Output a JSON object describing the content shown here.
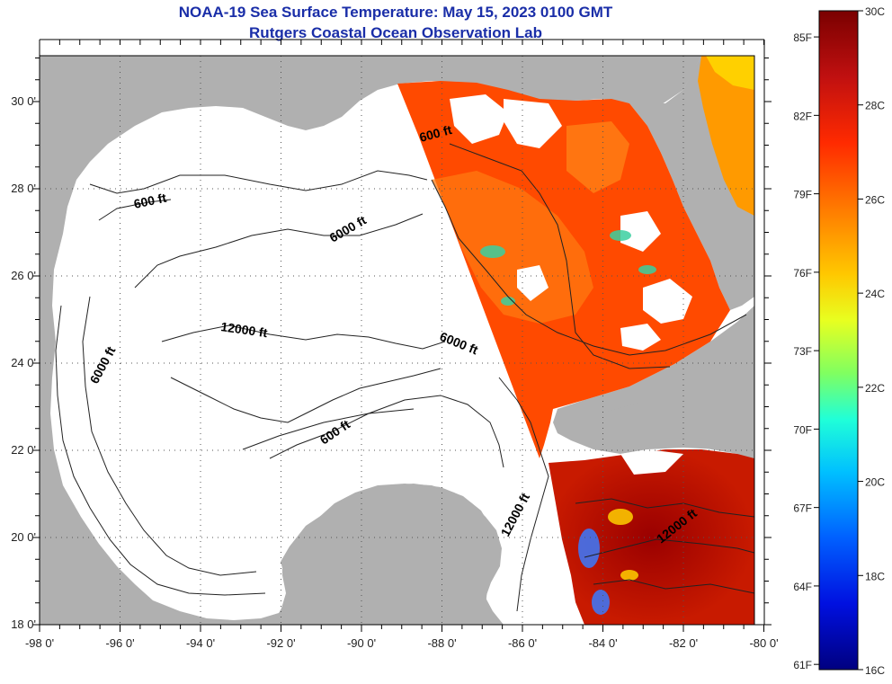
{
  "title": {
    "line1": "NOAA-19 Sea Surface Temperature:  May 15, 2023 0100 GMT",
    "line2": "Rutgers Coastal Ocean Observation Lab"
  },
  "map": {
    "lon_ticks": [
      "-98 0'",
      "-96 0'",
      "-94 0'",
      "-92 0'",
      "-90 0'",
      "-88 0'",
      "-86 0'",
      "-84 0'",
      "-82 0'",
      "-80 0'"
    ],
    "lat_ticks": [
      "30 0'",
      "28 0'",
      "26 0'",
      "24 0'",
      "22 0'",
      "20 0'",
      "18 0'"
    ],
    "lon_range": [
      -98,
      -80
    ],
    "lat_range": [
      18,
      31
    ],
    "contour_labels": [
      "600 ft",
      "6000 ft",
      "12000 ft",
      "6000 ft",
      "600 ft",
      "6000 ft",
      "600 ft",
      "12000 ft",
      "12000 ft"
    ],
    "colors": {
      "land": "#b0b0b0",
      "cloud_or_nodata": "#ffffff",
      "grid": "#555555",
      "contour": "#222222"
    }
  },
  "colorbar": {
    "fahrenheit_labels": [
      "85F",
      "82F",
      "79F",
      "76F",
      "73F",
      "70F",
      "67F",
      "64F",
      "61F"
    ],
    "celsius_labels": [
      "30C",
      "28C",
      "26C",
      "24C",
      "22C",
      "20C",
      "18C",
      "16C"
    ],
    "range_c": [
      16,
      30
    ],
    "range_f": [
      61,
      86
    ]
  }
}
